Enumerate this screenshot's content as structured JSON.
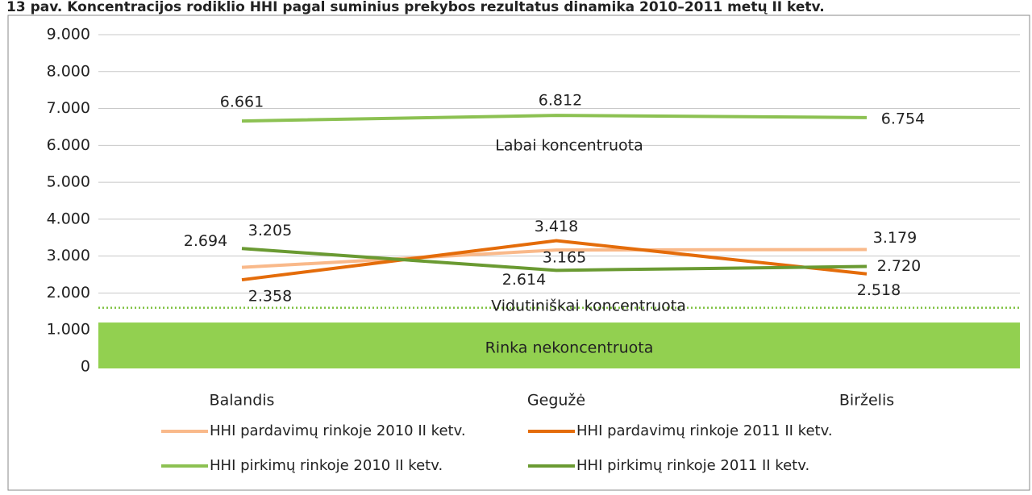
{
  "chart_data": {
    "type": "line",
    "title": "13 pav. Koncentracijos rodiklio HHI pagal suminius prekybos rezultatus dinamika 2010–2011 metų II ketv.",
    "categories": [
      "Balandis",
      "Gegužė",
      "Birželis"
    ],
    "series": [
      {
        "name": "HHI pardavimų rinkoje 2010 II ketv.",
        "color": "#f9b98a",
        "values": [
          2694,
          3165,
          3179
        ],
        "value_labels": [
          "2.694",
          "3.165",
          "3.179"
        ]
      },
      {
        "name": "HHI pardavimų rinkoje 2011 II ketv.",
        "color": "#e46c0a",
        "values": [
          2358,
          3418,
          2518
        ],
        "value_labels": [
          "2.358",
          "3.418",
          "2.518"
        ]
      },
      {
        "name": "HHI pirkimų rinkoje 2010 II ketv.",
        "color": "#8cc152",
        "values": [
          6661,
          6812,
          6754
        ],
        "value_labels": [
          "6.661",
          "6.812",
          "6.754"
        ]
      },
      {
        "name": "HHI pirkimų rinkoje 2011 II ketv.",
        "color": "#6a9a32",
        "values": [
          3205,
          2614,
          2720
        ],
        "value_labels": [
          "3.205",
          "2.614",
          "2.720"
        ]
      }
    ],
    "ylim": [
      0,
      9000
    ],
    "yticks": [
      0,
      {
        "value": 1000,
        "label": "1.000"
      },
      {
        "value": 2000,
        "label": "2.000"
      },
      {
        "value": 3000,
        "label": "3.000"
      },
      {
        "value": 4000,
        "label": "4.000"
      },
      {
        "value": 5000,
        "label": "5.000"
      },
      {
        "value": 6000,
        "label": "6.000"
      },
      {
        "value": 7000,
        "label": "7.000"
      },
      {
        "value": 8000,
        "label": "8.000"
      },
      {
        "value": 9000,
        "label": "9.000"
      }
    ],
    "grid": true,
    "zones": {
      "high": {
        "label": "Labai koncentruota"
      },
      "mid": {
        "label": "Vidutiniškai koncentruota",
        "line": 1600,
        "color": "#7fc241"
      },
      "low": {
        "label": "Rinka nekoncentruota",
        "range": [
          0,
          1200
        ],
        "color": "#92d050"
      }
    },
    "legend": "bottom"
  }
}
